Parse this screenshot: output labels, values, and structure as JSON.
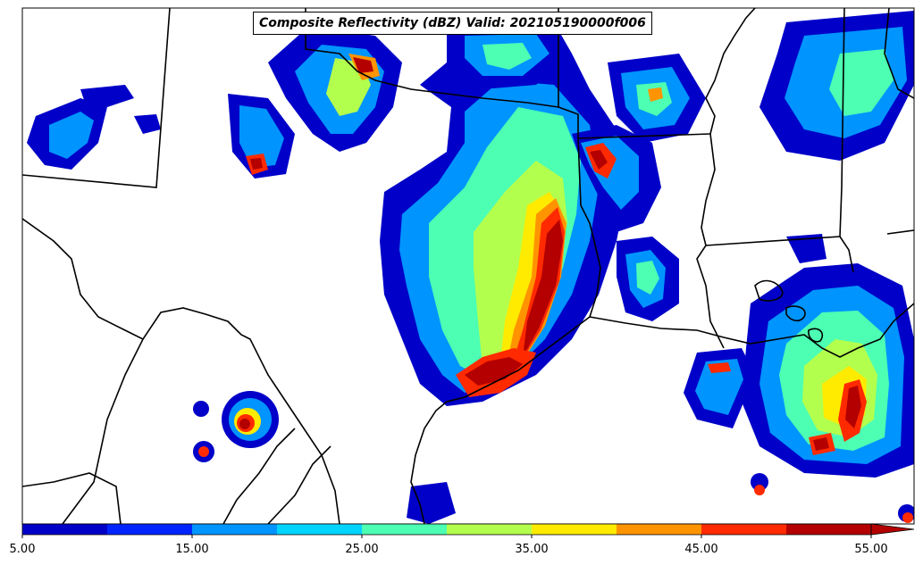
{
  "title": "Composite Reflectivity (dBZ) Valid: 202105190000f006",
  "colorbar": {
    "ticks": [
      "5.00",
      "15.00",
      "25.00",
      "35.00",
      "45.00",
      "55.00"
    ],
    "tick_values": [
      5,
      15,
      25,
      35,
      45,
      55
    ],
    "min": 5,
    "max": 55,
    "extend": "max",
    "levels": [
      5,
      10,
      15,
      20,
      25,
      30,
      35,
      40,
      45,
      50,
      55
    ],
    "colors": [
      "#0000c8",
      "#0024ff",
      "#0094ff",
      "#00d4ff",
      "#4dffb3",
      "#b3ff4d",
      "#ffeb00",
      "#ff9400",
      "#ff2a00",
      "#b40000"
    ]
  }
}
